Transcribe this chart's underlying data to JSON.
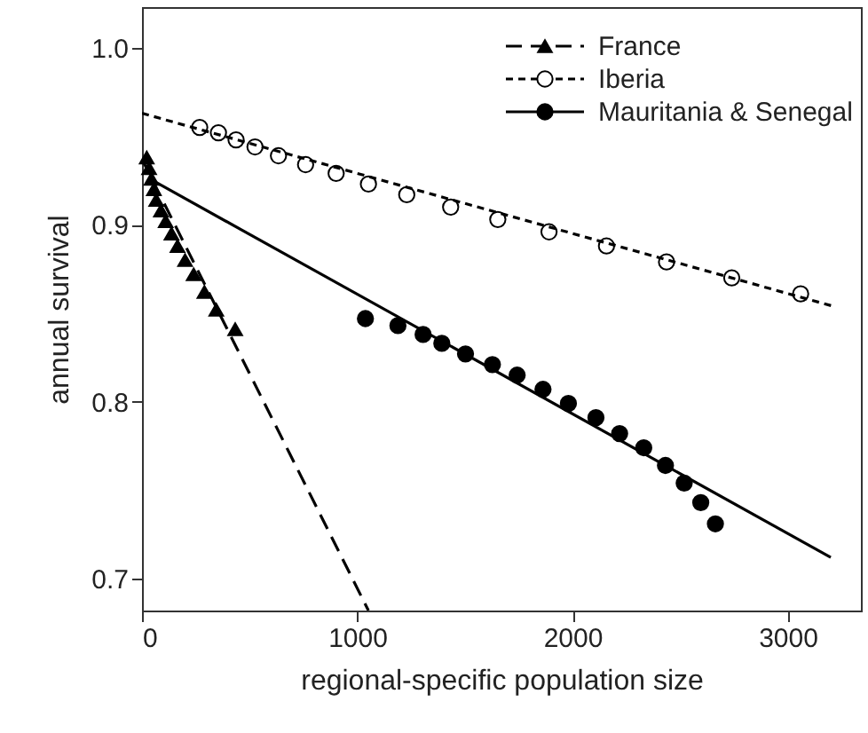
{
  "chart_data": {
    "type": "scatter",
    "xlabel": "regional-specific population size",
    "ylabel": "annual survival",
    "xlim": [
      0,
      3340
    ],
    "ylim": [
      0.682,
      1.023
    ],
    "xticks": [
      0,
      1000,
      2000,
      3000
    ],
    "yticks": [
      0.7,
      0.8,
      0.9,
      {
        "value": 1,
        "label": "1.0"
      }
    ],
    "grid": false,
    "legend": "top right",
    "series": [
      {
        "name": "France",
        "marker": "triangle",
        "color": "#000000",
        "x": [
          22,
          33,
          44,
          55,
          66,
          88,
          110,
          137,
          165,
          200,
          240,
          290,
          345,
          433
        ],
        "values": [
          0.938,
          0.932,
          0.926,
          0.92,
          0.914,
          0.908,
          0.902,
          0.895,
          0.888,
          0.88,
          0.872,
          0.862,
          0.852,
          0.841
        ]
      },
      {
        "type": "line",
        "line_style": "dashed",
        "color": "#000000",
        "x": [
          0,
          1052
        ],
        "values": [
          0.937,
          0.682
        ]
      },
      {
        "name": "Iberia",
        "marker": "circle",
        "color": "#ffffff",
        "x": [
          268,
          355,
          437,
          525,
          634,
          760,
          902,
          1052,
          1230,
          1434,
          1653,
          1891,
          2158,
          2437,
          2740,
          3060
        ],
        "values": [
          0.955,
          0.952,
          0.948,
          0.944,
          0.939,
          0.934,
          0.929,
          0.923,
          0.917,
          0.91,
          0.903,
          0.896,
          0.888,
          0.879,
          0.87,
          0.861
        ]
      },
      {
        "type": "line",
        "line_style": "dotted",
        "color": "#000000",
        "x": [
          0,
          3210
        ],
        "values": [
          0.963,
          0.854
        ]
      },
      {
        "name": "Mauritania & Senegal",
        "marker": "circle",
        "color": "#000000",
        "x": [
          1038,
          1189,
          1306,
          1393,
          1503,
          1628,
          1743,
          1863,
          1981,
          2109,
          2219,
          2331,
          2432,
          2519,
          2596,
          2664
        ],
        "values": [
          0.847,
          0.843,
          0.838,
          0.833,
          0.827,
          0.821,
          0.815,
          0.807,
          0.799,
          0.791,
          0.782,
          0.774,
          0.764,
          0.754,
          0.743,
          0.731
        ]
      },
      {
        "type": "line",
        "line_style": "solid",
        "color": "#000000",
        "x": [
          50,
          3200
        ],
        "values": [
          0.925,
          0.712
        ]
      }
    ]
  }
}
